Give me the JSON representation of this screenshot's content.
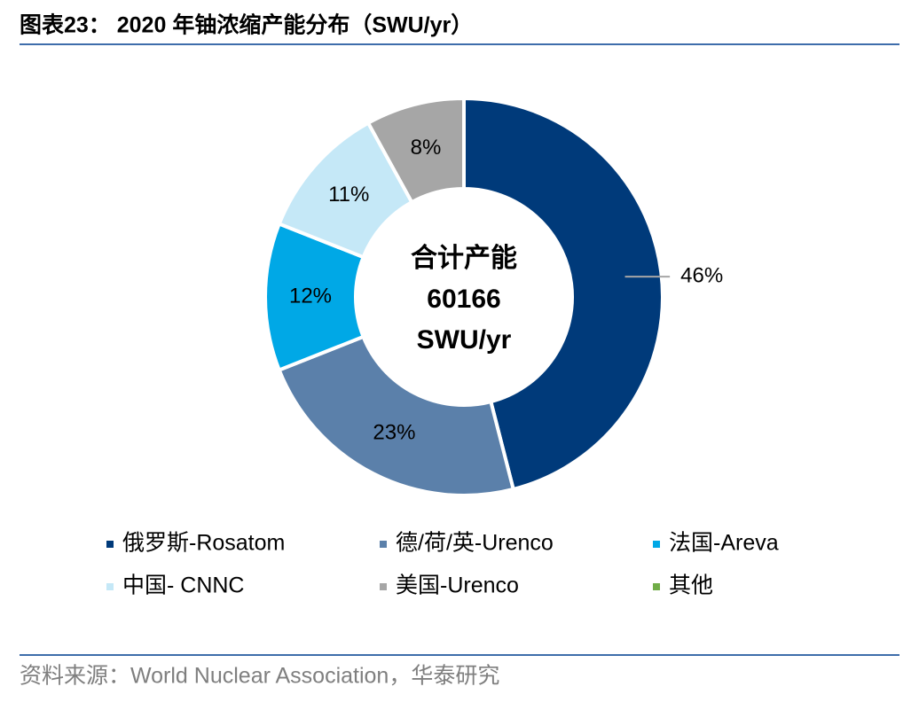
{
  "chart_data": {
    "type": "pie",
    "donut": true,
    "title": "图表23： 2020 年铀浓缩产能分布（SWU/yr）",
    "categories": [
      "俄罗斯-Rosatom",
      "德/荷/英-Urenco",
      "法国-Areva",
      "中国- CNNC",
      "美国-Urenco",
      "其他"
    ],
    "values": [
      46,
      23,
      12,
      11,
      8,
      0
    ],
    "value_labels": [
      "46%",
      "23%",
      "12%",
      "11%",
      "8%",
      null
    ],
    "colors": [
      "#003a7a",
      "#5b80aa",
      "#00a8e6",
      "#c5e8f7",
      "#a6a6a6",
      "#70ad47"
    ],
    "center_title": "合计产能",
    "total": 60166,
    "total_unit": "SWU/yr",
    "source": "资料来源：World Nuclear Association，华泰研究"
  }
}
